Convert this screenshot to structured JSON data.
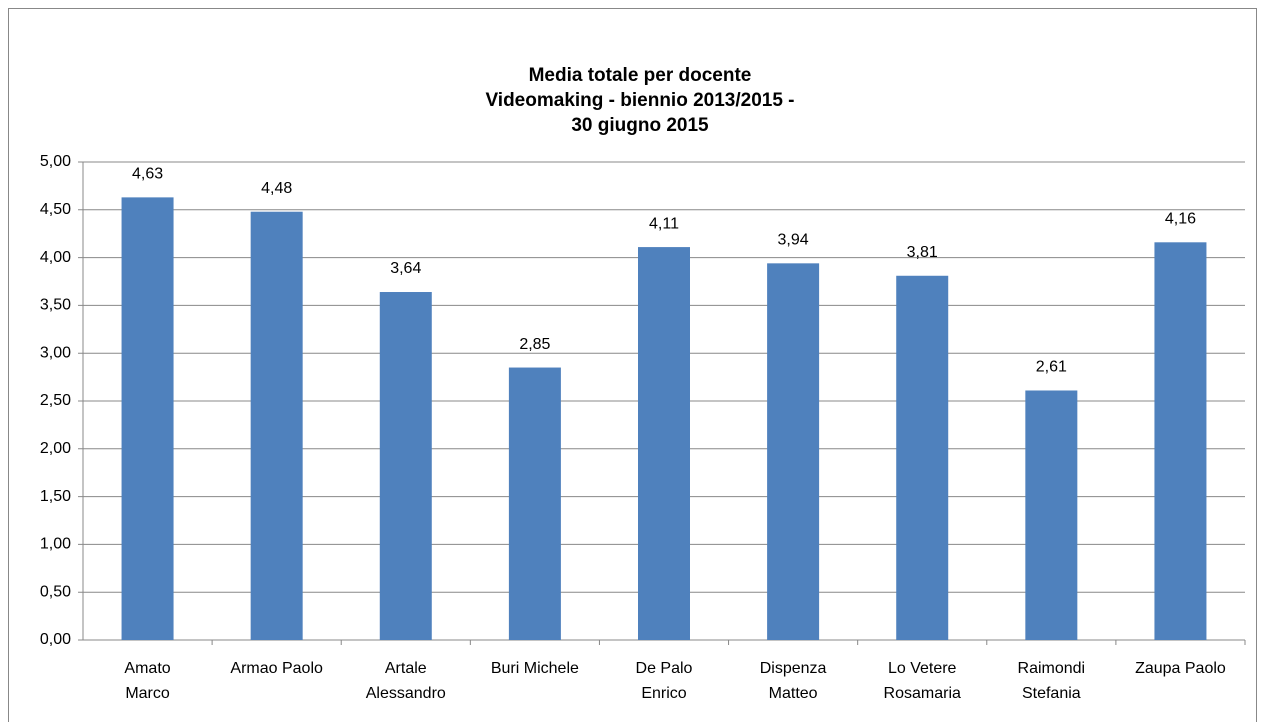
{
  "chart_data": {
    "type": "bar",
    "title": [
      "Media totale per docente",
      "Videomaking - biennio 2013/2015 -",
      "30 giugno 2015"
    ],
    "categories": [
      "Amato\nMarco",
      "Armao Paolo",
      "Artale\nAlessandro",
      "Buri Michele",
      "De Palo\nEnrico",
      "Dispenza\nMatteo",
      "Lo Vetere\nRosamaria",
      "Raimondi\nStefania",
      "Zaupa Paolo"
    ],
    "values": [
      4.63,
      4.48,
      3.64,
      2.85,
      4.11,
      3.94,
      3.81,
      2.61,
      4.16
    ],
    "value_labels": [
      "4,63",
      "4,48",
      "3,64",
      "2,85",
      "4,11",
      "3,94",
      "3,81",
      "2,61",
      "4,16"
    ],
    "color": "#4f81bd",
    "ylim": [
      0,
      5
    ],
    "yticks": [
      {
        "value": 0,
        "label": "0,00"
      },
      {
        "value": 0.5,
        "label": "0,50"
      },
      {
        "value": 1,
        "label": "1,00"
      },
      {
        "value": 1.5,
        "label": "1,50"
      },
      {
        "value": 2,
        "label": "2,00"
      },
      {
        "value": 2.5,
        "label": "2,50"
      },
      {
        "value": 3,
        "label": "3,00"
      },
      {
        "value": 3.5,
        "label": "3,50"
      },
      {
        "value": 4,
        "label": "4,00"
      },
      {
        "value": 4.5,
        "label": "4,50"
      },
      {
        "value": 5,
        "label": "5,00"
      }
    ],
    "grid": true
  }
}
